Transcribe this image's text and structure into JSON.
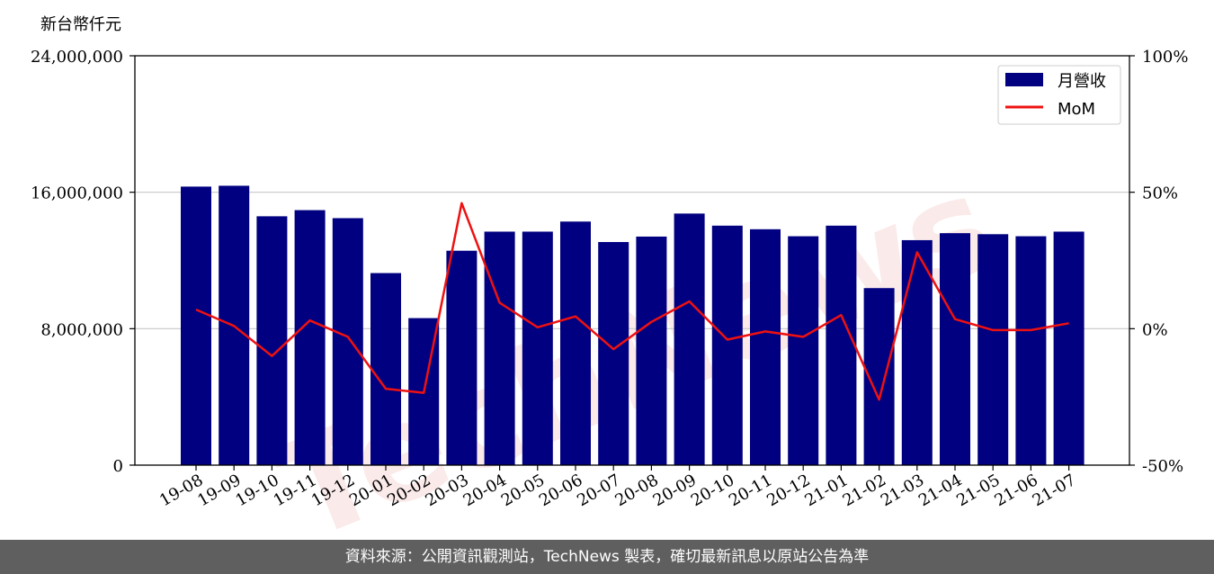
{
  "footer": {
    "source": "資料來源：公開資訊觀測站，TechNews 製表，確切最新訊息以原站公告為準"
  },
  "watermark": "TechNews",
  "colors": {
    "bar": "#000080",
    "line": "#ee1111",
    "grid": "#c8c8c8"
  },
  "chart_data": {
    "type": "bar",
    "title": "",
    "ylabel_left": "新台幣仟元",
    "ylim_left": [
      0,
      24000000
    ],
    "yticks_left": [
      "0",
      "8,000,000",
      "16,000,000",
      "24,000,000"
    ],
    "yticks_left_values": [
      0,
      8000000,
      16000000,
      24000000
    ],
    "ylim_right": [
      -50,
      100
    ],
    "yticks_right": [
      "-50%",
      "0%",
      "50%",
      "100%"
    ],
    "yticks_right_values": [
      -50,
      0,
      50,
      100
    ],
    "grid": "horizontal",
    "legend_position": "top-right",
    "categories": [
      "19-08",
      "19-09",
      "19-10",
      "19-11",
      "19-12",
      "20-01",
      "20-02",
      "20-03",
      "20-04",
      "20-05",
      "20-06",
      "20-07",
      "20-08",
      "20-09",
      "20-10",
      "20-11",
      "20-12",
      "21-01",
      "21-02",
      "21-03",
      "21-04",
      "21-05",
      "21-06",
      "21-07"
    ],
    "series": [
      {
        "name": "月營收",
        "type": "bar",
        "axis": "left",
        "values": [
          16330000,
          16380000,
          14590000,
          14950000,
          14480000,
          11260000,
          8620000,
          12570000,
          13690000,
          13690000,
          14280000,
          13080000,
          13400000,
          14750000,
          14040000,
          13830000,
          13420000,
          14040000,
          10380000,
          13190000,
          13600000,
          13540000,
          13420000,
          13690000
        ]
      },
      {
        "name": "MoM",
        "type": "line",
        "axis": "right",
        "values": [
          7,
          1,
          -10,
          3,
          -3,
          -22,
          -23.5,
          46,
          9.5,
          0.5,
          4.5,
          -7.5,
          2.5,
          10,
          -4,
          -1,
          -3,
          5,
          -26,
          28,
          3.5,
          -0.5,
          -0.5,
          2
        ]
      }
    ]
  }
}
